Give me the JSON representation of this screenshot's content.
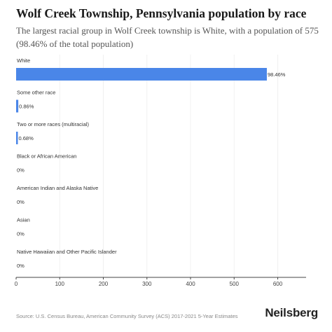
{
  "title": "Wolf Creek Township, Pennsylvania population by race",
  "subtitle": "The largest racial group in Wolf Creek township is White, with a population of 575 (98.46% of the total population)",
  "footer": {
    "source": "Source: U.S. Census Bureau, American Community Survey (ACS) 2017-2021 5-Year Estimates",
    "brand": "Neilsberg"
  },
  "colors": {
    "bar": "#4a86e8",
    "axis": "#444444",
    "grid": "#f0f0f0"
  },
  "chart_data": {
    "type": "bar",
    "orientation": "horizontal",
    "categories": [
      "White",
      "Some other race",
      "Two or more races (multiracial)",
      "Black or African American",
      "American Indian and Alaska Native",
      "Asian",
      "Native Hawaiian and Other Pacific Islander"
    ],
    "values": [
      575,
      5,
      4,
      0,
      0,
      0,
      0
    ],
    "labels": [
      "98.46%",
      "0.86%",
      "0.68%",
      "0%",
      "0%",
      "0%",
      "0%"
    ],
    "xticks": [
      0,
      100,
      200,
      300,
      400,
      500,
      600
    ],
    "xlim": [
      0,
      665
    ],
    "xlabel": "",
    "ylabel": ""
  }
}
